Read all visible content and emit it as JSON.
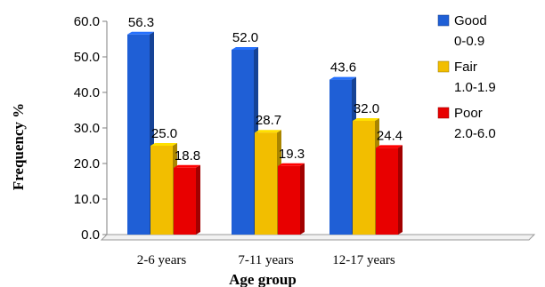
{
  "chart_data": {
    "type": "bar",
    "xlabel": "Age group",
    "ylabel": "Frequency %",
    "ylim": [
      0,
      60
    ],
    "yticks": [
      "0.0",
      "10.0",
      "20.0",
      "30.0",
      "40.0",
      "50.0",
      "60.0"
    ],
    "grid": false,
    "legend_position": "right",
    "categories": [
      "2-6 years",
      "7-11 years",
      "12-17 years"
    ],
    "series": [
      {
        "name": "Good",
        "range": "0-0.9",
        "color": "#1f5fd6",
        "values": [
          56.3,
          52.0,
          43.6
        ],
        "labels": [
          "56.3",
          "52.0",
          "43.6"
        ]
      },
      {
        "name": "Fair",
        "range": "1.0-1.9",
        "color": "#f2be00",
        "values": [
          25.0,
          28.7,
          32.0
        ],
        "labels": [
          "25.0",
          "28.7",
          "32.0"
        ]
      },
      {
        "name": "Poor",
        "range": "2.0-6.0",
        "color": "#e80000",
        "values": [
          18.8,
          19.3,
          24.4
        ],
        "labels": [
          "18.8",
          "19.3",
          "24.4"
        ]
      }
    ]
  }
}
